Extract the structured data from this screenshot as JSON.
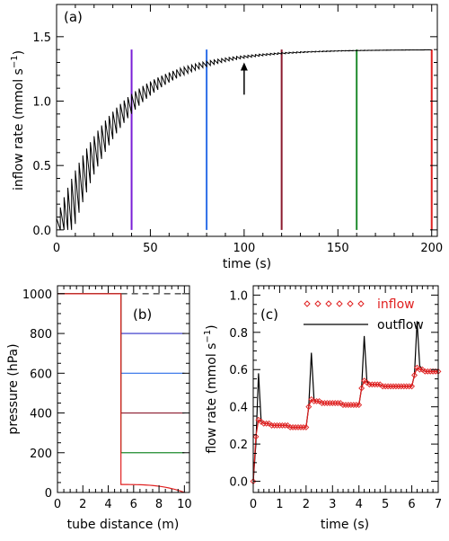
{
  "chart_data": [
    {
      "panel_label": "(a)",
      "type": "line",
      "xlabel": "time (s)",
      "ylabel": "inflow rate (mmol s",
      "ylabel_sup": "−1",
      "ylabel_end": ")",
      "xlim": [
        0,
        203
      ],
      "ylim": [
        -0.05,
        1.75
      ],
      "x_ticks": [
        0,
        50,
        100,
        150,
        200
      ],
      "y_ticks": [
        0.0,
        0.5,
        1.0,
        1.5
      ],
      "y_tick_labels": [
        "0.0",
        "0.5",
        "1.0",
        "1.5"
      ],
      "curve": {
        "color": "#000000",
        "model": "sawtooth rise to plateau",
        "plateau": 1.4,
        "tau_s": 30,
        "step_period_s": 2,
        "x_end": 200
      },
      "vertical_markers": [
        {
          "x": 40,
          "color": "#7a1fd6"
        },
        {
          "x": 80,
          "color": "#2d6ee8"
        },
        {
          "x": 120,
          "color": "#8b1a2e"
        },
        {
          "x": 160,
          "color": "#1f8a2d"
        },
        {
          "x": 200,
          "color": "#e02020"
        }
      ],
      "arrow": {
        "x": 100,
        "y_from": 1.05,
        "y_to": 1.3
      }
    },
    {
      "panel_label": "(b)",
      "type": "line",
      "xlabel": "tube distance (m)",
      "ylabel": "pressure (hPa)",
      "xlim": [
        0,
        10.4
      ],
      "ylim": [
        0,
        1040
      ],
      "x_ticks": [
        0,
        2,
        4,
        6,
        8,
        10
      ],
      "y_ticks": [
        0,
        200,
        400,
        600,
        800,
        1000
      ],
      "dashed_level": {
        "y": 1000,
        "x_from": 5,
        "x_to": 10
      },
      "series": [
        {
          "color": "#2d2dc8",
          "level": 800
        },
        {
          "color": "#2d6ee8",
          "level": 600
        },
        {
          "color": "#8b1a2e",
          "level": 400
        },
        {
          "color": "#1f8a2d",
          "level": 200
        },
        {
          "color": "#e02020",
          "level": 40,
          "decays_to": 0
        }
      ],
      "upstream": {
        "y": 1000,
        "x_from": 0,
        "x_to": 5
      }
    },
    {
      "panel_label": "(c)",
      "type": "line",
      "xlabel": "time (s)",
      "ylabel": "flow rate (mmol s",
      "ylabel_sup": "−1",
      "ylabel_end": ")",
      "xlim": [
        0,
        7
      ],
      "ylim": [
        -0.06,
        1.05
      ],
      "x_ticks": [
        0,
        1,
        2,
        3,
        4,
        5,
        6,
        7
      ],
      "y_ticks": [
        0.0,
        0.2,
        0.4,
        0.6,
        0.8,
        1.0
      ],
      "y_tick_labels": [
        "0.0",
        "0.2",
        "0.4",
        "0.6",
        "0.8",
        "1.0"
      ],
      "legend": {
        "placement": "top-right",
        "entries": [
          "inflow",
          "outflow"
        ]
      },
      "series": [
        {
          "name": "inflow",
          "color": "#e02020",
          "marker": "diamond",
          "x": [
            0.0,
            0.1,
            0.2,
            0.3,
            0.4,
            0.5,
            0.6,
            0.7,
            0.8,
            0.9,
            1.0,
            1.1,
            1.2,
            1.3,
            1.4,
            1.5,
            1.6,
            1.7,
            1.8,
            1.9,
            2.0,
            2.1,
            2.2,
            2.3,
            2.4,
            2.5,
            2.6,
            2.7,
            2.8,
            2.9,
            3.0,
            3.1,
            3.2,
            3.3,
            3.4,
            3.5,
            3.6,
            3.7,
            3.8,
            3.9,
            4.0,
            4.1,
            4.2,
            4.3,
            4.4,
            4.5,
            4.6,
            4.7,
            4.8,
            4.9,
            5.0,
            5.1,
            5.2,
            5.3,
            5.4,
            5.5,
            5.6,
            5.7,
            5.8,
            5.9,
            6.0,
            6.1,
            6.2,
            6.3,
            6.4,
            6.5,
            6.6,
            6.7,
            6.8,
            6.9,
            7.0
          ],
          "y": [
            0.0,
            0.24,
            0.33,
            0.32,
            0.31,
            0.31,
            0.31,
            0.3,
            0.3,
            0.3,
            0.3,
            0.3,
            0.3,
            0.3,
            0.29,
            0.29,
            0.29,
            0.29,
            0.29,
            0.29,
            0.29,
            0.4,
            0.44,
            0.43,
            0.43,
            0.43,
            0.42,
            0.42,
            0.42,
            0.42,
            0.42,
            0.42,
            0.42,
            0.42,
            0.41,
            0.41,
            0.41,
            0.41,
            0.41,
            0.41,
            0.41,
            0.5,
            0.54,
            0.53,
            0.52,
            0.52,
            0.52,
            0.52,
            0.52,
            0.51,
            0.51,
            0.51,
            0.51,
            0.51,
            0.51,
            0.51,
            0.51,
            0.51,
            0.51,
            0.51,
            0.51,
            0.57,
            0.61,
            0.6,
            0.6,
            0.59,
            0.59,
            0.59,
            0.59,
            0.59,
            0.59
          ]
        },
        {
          "name": "outflow",
          "color": "#000000",
          "x": [
            0.0,
            0.1,
            0.2,
            0.3,
            0.4,
            0.5,
            0.6,
            0.7,
            0.8,
            0.9,
            1.0,
            1.1,
            1.2,
            1.3,
            1.4,
            1.5,
            1.6,
            1.7,
            1.8,
            1.9,
            2.0,
            2.1,
            2.2,
            2.3,
            2.4,
            2.5,
            2.6,
            2.7,
            2.8,
            2.9,
            3.0,
            3.1,
            3.2,
            3.3,
            3.4,
            3.5,
            3.6,
            3.7,
            3.8,
            3.9,
            4.0,
            4.1,
            4.2,
            4.3,
            4.4,
            4.5,
            4.6,
            4.7,
            4.8,
            4.9,
            5.0,
            5.1,
            5.2,
            5.3,
            5.4,
            5.5,
            5.6,
            5.7,
            5.8,
            5.9,
            6.0,
            6.1,
            6.2,
            6.3,
            6.4,
            6.5,
            6.6,
            6.7,
            6.8,
            6.9,
            7.0
          ],
          "y": [
            0.0,
            0.2,
            0.58,
            0.32,
            0.31,
            0.31,
            0.31,
            0.3,
            0.3,
            0.3,
            0.3,
            0.3,
            0.3,
            0.3,
            0.29,
            0.29,
            0.29,
            0.29,
            0.29,
            0.29,
            0.29,
            0.4,
            0.69,
            0.44,
            0.43,
            0.43,
            0.42,
            0.42,
            0.42,
            0.42,
            0.42,
            0.42,
            0.42,
            0.42,
            0.41,
            0.41,
            0.41,
            0.41,
            0.41,
            0.41,
            0.41,
            0.5,
            0.78,
            0.54,
            0.52,
            0.52,
            0.52,
            0.52,
            0.52,
            0.51,
            0.51,
            0.51,
            0.51,
            0.51,
            0.51,
            0.51,
            0.51,
            0.51,
            0.51,
            0.51,
            0.51,
            0.57,
            0.86,
            0.62,
            0.6,
            0.59,
            0.59,
            0.59,
            0.59,
            0.59,
            0.59
          ]
        }
      ]
    }
  ]
}
